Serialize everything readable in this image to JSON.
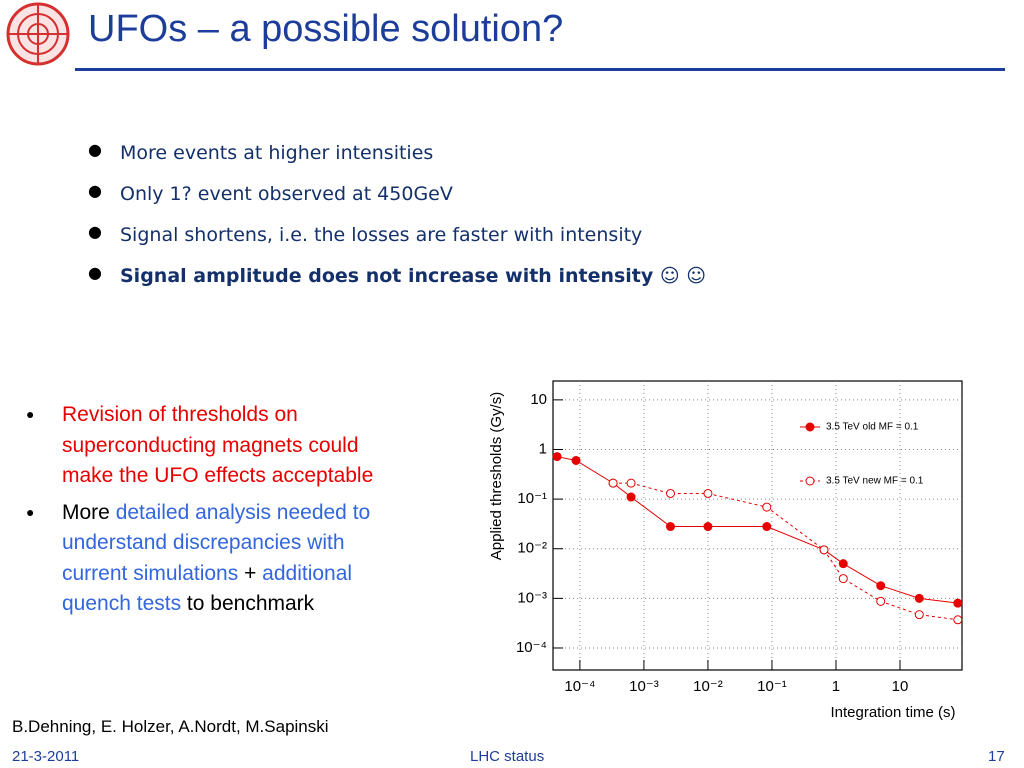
{
  "header": {
    "title": "UFOs – a possible solution?"
  },
  "top_bullets": [
    {
      "text": "More events at higher intensities"
    },
    {
      "text": "Only 1? event observed at 450GeV"
    },
    {
      "text": "Signal shortens, i.e. the losses are faster with intensity"
    },
    {
      "text": "Signal amplitude does not increase with intensity ☺ ☺",
      "bold": true
    }
  ],
  "left_bullets": [
    {
      "runs": [
        {
          "text": "Revision of thresholds on superconducting magnets could make the UFO effects acceptable",
          "color": "#e60000"
        }
      ]
    },
    {
      "runs": [
        {
          "text": "More ",
          "color": "#000000"
        },
        {
          "text": "detailed analysis needed to understand discrepancies with current simulations",
          "color": "#3366dd"
        },
        {
          "text": " + ",
          "color": "#000000"
        },
        {
          "text": "additional quench tests",
          "color": "#3366dd"
        },
        {
          "text": " to benchmark",
          "color": "#000000"
        }
      ]
    }
  ],
  "footer": {
    "authors": "B.Dehning, E. Holzer, A.Nordt, M.Sapinski",
    "date": "21-3-2011",
    "center": "LHC status",
    "page": "17"
  },
  "chart_data": {
    "type": "line",
    "xlabel": "Integration time (s)",
    "ylabel": "Applied thresholds (Gy/s)",
    "xlog": true,
    "ylog": true,
    "grid": true,
    "legend": "upper right",
    "xlim": [
      3.8e-05,
      93
    ],
    "ylim": [
      3.6e-05,
      24
    ],
    "xticks": [
      {
        "value": 0.0001,
        "label": "10⁻⁴"
      },
      {
        "value": 0.001,
        "label": "10⁻³"
      },
      {
        "value": 0.01,
        "label": "10⁻²"
      },
      {
        "value": 0.1,
        "label": "10⁻¹"
      },
      1,
      10
    ],
    "yticks": [
      {
        "value": 0.0001,
        "label": "10⁻⁴"
      },
      {
        "value": 0.001,
        "label": "10⁻³"
      },
      {
        "value": 0.01,
        "label": "10⁻²"
      },
      {
        "value": 0.1,
        "label": "10⁻¹"
      },
      1,
      10
    ],
    "series": [
      {
        "name": "3.5 TeV old MF = 0.1",
        "color": "#e60000",
        "marker": "filled",
        "dashed": false,
        "x": [
          4.4e-05,
          8.7e-05,
          0.00033,
          0.00063,
          0.0026,
          0.01,
          0.083,
          0.65,
          1.3,
          5,
          20,
          80
        ],
        "values": [
          0.72,
          0.6,
          0.21,
          0.11,
          0.028,
          0.028,
          0.028,
          0.0095,
          0.005,
          0.0018,
          0.001,
          0.0008
        ]
      },
      {
        "name": "3.5 TeV new MF = 0.1",
        "color": "#e60000",
        "marker": "hollow",
        "dashed": true,
        "x": [
          0.00033,
          0.00063,
          0.0026,
          0.01,
          0.083,
          0.65,
          1.3,
          5,
          20,
          80
        ],
        "values": [
          0.21,
          0.21,
          0.13,
          0.13,
          0.069,
          0.0095,
          0.0025,
          0.00087,
          0.00047,
          0.00037
        ]
      }
    ]
  }
}
